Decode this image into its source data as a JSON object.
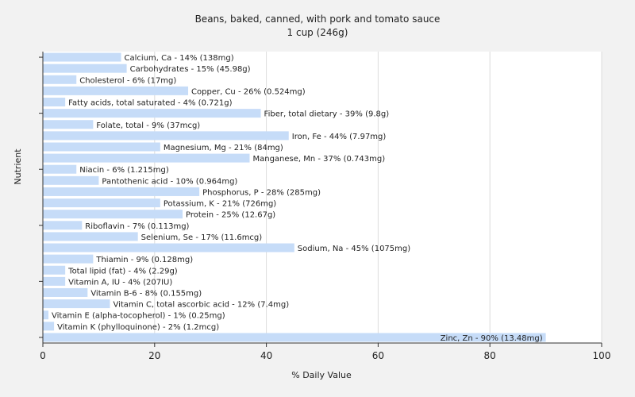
{
  "chart_data": {
    "type": "bar",
    "orientation": "horizontal",
    "title": "Beans, baked, canned, with pork and tomato sauce",
    "subtitle": "1 cup (246g)",
    "xlabel": "% Daily Value",
    "ylabel": "Nutrient",
    "xlim": [
      0,
      100
    ],
    "x_ticks": [
      "0",
      "20",
      "40",
      "60",
      "80",
      "100"
    ],
    "grid": true,
    "bar_color": "#c6dcf8",
    "categories": [
      "Calcium, Ca - 14% (138mg)",
      "Carbohydrates - 15% (45.98g)",
      "Cholesterol - 6% (17mg)",
      "Copper, Cu - 26% (0.524mg)",
      "Fatty acids, total saturated - 4% (0.721g)",
      "Fiber, total dietary - 39% (9.8g)",
      "Folate, total - 9% (37mcg)",
      "Iron, Fe - 44% (7.97mg)",
      "Magnesium, Mg - 21% (84mg)",
      "Manganese, Mn - 37% (0.743mg)",
      "Niacin - 6% (1.215mg)",
      "Pantothenic acid - 10% (0.964mg)",
      "Phosphorus, P - 28% (285mg)",
      "Potassium, K - 21% (726mg)",
      "Protein - 25% (12.67g)",
      "Riboflavin - 7% (0.113mg)",
      "Selenium, Se - 17% (11.6mcg)",
      "Sodium, Na - 45% (1075mg)",
      "Thiamin - 9% (0.128mg)",
      "Total lipid (fat) - 4% (2.29g)",
      "Vitamin A, IU - 4% (207IU)",
      "Vitamin B-6 - 8% (0.155mg)",
      "Vitamin C, total ascorbic acid - 12% (7.4mg)",
      "Vitamin E (alpha-tocopherol) - 1% (0.25mg)",
      "Vitamin K (phylloquinone) - 2% (1.2mcg)",
      "Zinc, Zn - 90% (13.48mg)"
    ],
    "values": [
      14,
      15,
      6,
      26,
      4,
      39,
      9,
      44,
      21,
      37,
      6,
      10,
      28,
      21,
      25,
      7,
      17,
      45,
      9,
      4,
      4,
      8,
      12,
      1,
      2,
      90
    ]
  }
}
